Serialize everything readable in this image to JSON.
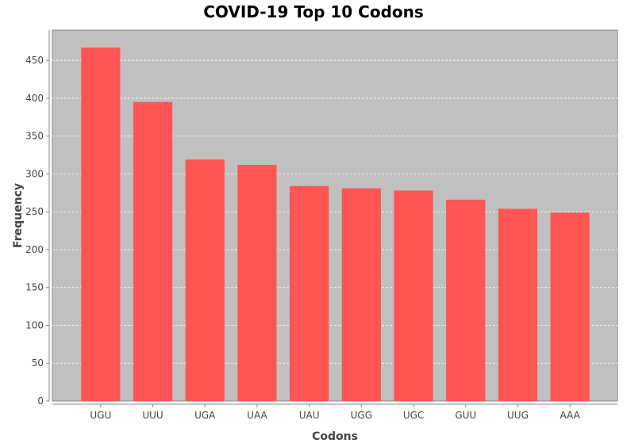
{
  "chart_data": {
    "type": "bar",
    "title": "COVID-19 Top 10 Codons",
    "xlabel": "Codons",
    "ylabel": "Frequency",
    "categories": [
      "UGU",
      "UUU",
      "UGA",
      "UAA",
      "UAU",
      "UGG",
      "UGC",
      "GUU",
      "UUG",
      "AAA"
    ],
    "values": [
      467,
      395,
      319,
      312,
      284,
      281,
      278,
      266,
      254,
      249
    ],
    "ylim": [
      0,
      490
    ],
    "yticks": [
      0,
      50,
      100,
      150,
      200,
      250,
      300,
      350,
      400,
      450
    ],
    "grid": true,
    "legend": "none",
    "colors": {
      "bar": "#ff5555",
      "plot_background": "#c0c0c0",
      "gridline": "#ffffff"
    }
  }
}
